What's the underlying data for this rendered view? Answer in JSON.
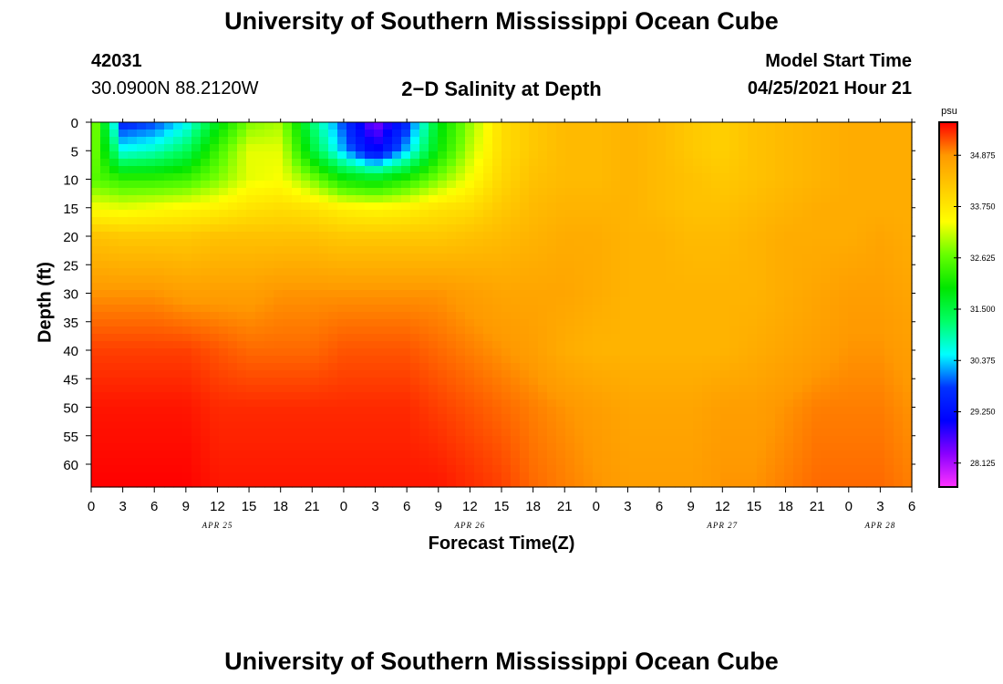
{
  "header": {
    "title_top": "University of Southern Mississippi Ocean Cube",
    "title_bottom": "University of Southern Mississippi Ocean Cube",
    "station_id": "42031",
    "coords": "30.0900N  88.2120W",
    "plot_title": "2−D Salinity at Depth",
    "start_label": "Model Start Time",
    "start_value": "04/25/2021 Hour 21"
  },
  "colors": {
    "scale": [
      "#ff33ff",
      "#8a00ff",
      "#0000ff",
      "#0033ff",
      "#00ffff",
      "#00ff66",
      "#00e600",
      "#66ff00",
      "#ffff00",
      "#ffcc00",
      "#ff9900",
      "#ff0000"
    ]
  },
  "chart_data": {
    "type": "heatmap",
    "title": "2−D Salinity at Depth",
    "xlabel": "Forecast Time(Z)",
    "ylabel": "Depth (ft)",
    "units": "psu",
    "ylim": [
      0,
      64
    ],
    "y_reversed": true,
    "grid": false,
    "x_hours": [
      0,
      78
    ],
    "x_ticks": [
      "0",
      "3",
      "6",
      "9",
      "12",
      "15",
      "18",
      "21",
      "0",
      "3",
      "6",
      "9",
      "12",
      "15",
      "18",
      "21",
      "0",
      "3",
      "6",
      "9",
      "12",
      "15",
      "18",
      "21",
      "0",
      "3",
      "6"
    ],
    "y_ticks": [
      "0",
      "5",
      "10",
      "15",
      "20",
      "25",
      "30",
      "35",
      "40",
      "45",
      "50",
      "55",
      "60"
    ],
    "dates": [
      {
        "label": "APR 25",
        "hour": 12
      },
      {
        "label": "APR 26",
        "hour": 36
      },
      {
        "label": "APR 27",
        "hour": 60
      },
      {
        "label": "APR 28",
        "hour": 75
      }
    ],
    "colorbar": {
      "label": "psu",
      "range": [
        27.6,
        35.6
      ],
      "tick_labels": [
        "34.875",
        "33.750",
        "32.625",
        "31.500",
        "30.375",
        "29.250",
        "28.125"
      ]
    },
    "depths": [
      0,
      5,
      10,
      15,
      20,
      30,
      40,
      50,
      64
    ],
    "times": [
      0,
      3,
      6,
      9,
      12,
      15,
      18,
      21,
      24,
      27,
      30,
      33,
      36,
      39,
      42,
      45,
      48,
      51,
      54,
      57,
      60,
      63,
      66,
      69,
      72,
      75,
      78
    ],
    "values": [
      [
        33.2,
        29.6,
        29.8,
        30.5,
        31.8,
        32.8,
        33.0,
        31.2,
        29.8,
        28.3,
        29.6,
        31.8,
        32.9,
        33.9,
        34.2,
        34.4,
        34.4,
        34.5,
        34.4,
        34.2,
        34.1,
        34.3,
        34.4,
        34.5,
        34.6,
        34.6,
        34.6
      ],
      [
        33.0,
        30.6,
        30.8,
        31.3,
        32.4,
        33.3,
        33.3,
        31.6,
        30.2,
        29.0,
        30.3,
        32.0,
        33.1,
        33.9,
        34.2,
        34.4,
        34.4,
        34.5,
        34.4,
        34.2,
        34.1,
        34.3,
        34.4,
        34.5,
        34.6,
        34.6,
        34.6
      ],
      [
        32.6,
        32.3,
        32.3,
        32.4,
        32.8,
        33.3,
        33.4,
        32.8,
        32.0,
        31.8,
        32.2,
        32.8,
        33.4,
        34.0,
        34.3,
        34.4,
        34.4,
        34.5,
        34.4,
        34.3,
        34.2,
        34.3,
        34.4,
        34.5,
        34.6,
        34.6,
        34.6
      ],
      [
        33.4,
        33.3,
        33.4,
        33.5,
        33.6,
        33.8,
        33.9,
        33.8,
        33.6,
        33.5,
        33.6,
        33.8,
        33.9,
        34.2,
        34.4,
        34.5,
        34.5,
        34.5,
        34.4,
        34.3,
        34.3,
        34.4,
        34.5,
        34.6,
        34.6,
        34.6,
        34.6
      ],
      [
        34.3,
        34.2,
        34.2,
        34.2,
        34.3,
        34.3,
        34.3,
        34.3,
        34.2,
        34.2,
        34.2,
        34.2,
        34.3,
        34.4,
        34.5,
        34.6,
        34.6,
        34.5,
        34.5,
        34.4,
        34.4,
        34.5,
        34.6,
        34.6,
        34.6,
        34.7,
        34.6
      ],
      [
        34.9,
        34.9,
        34.9,
        34.8,
        34.8,
        34.8,
        34.9,
        34.9,
        34.9,
        34.9,
        34.9,
        34.9,
        34.8,
        34.7,
        34.7,
        34.7,
        34.6,
        34.5,
        34.5,
        34.5,
        34.5,
        34.5,
        34.6,
        34.7,
        34.8,
        34.8,
        34.7
      ],
      [
        35.3,
        35.3,
        35.3,
        35.3,
        35.2,
        35.1,
        35.1,
        35.1,
        35.2,
        35.2,
        35.2,
        35.1,
        35.0,
        34.9,
        34.8,
        34.6,
        34.5,
        34.5,
        34.5,
        34.5,
        34.5,
        34.6,
        34.7,
        34.8,
        34.9,
        34.9,
        34.8
      ],
      [
        35.5,
        35.5,
        35.5,
        35.5,
        35.4,
        35.4,
        35.4,
        35.4,
        35.4,
        35.4,
        35.4,
        35.3,
        35.2,
        35.1,
        35.0,
        34.9,
        34.8,
        34.7,
        34.7,
        34.7,
        34.8,
        34.8,
        34.9,
        35.0,
        35.0,
        35.0,
        34.9
      ],
      [
        35.6,
        35.6,
        35.6,
        35.6,
        35.5,
        35.5,
        35.5,
        35.5,
        35.5,
        35.5,
        35.5,
        35.5,
        35.4,
        35.3,
        35.1,
        35.0,
        34.9,
        34.8,
        34.8,
        34.8,
        34.9,
        34.9,
        35.0,
        35.1,
        35.1,
        35.1,
        35.0
      ]
    ]
  }
}
